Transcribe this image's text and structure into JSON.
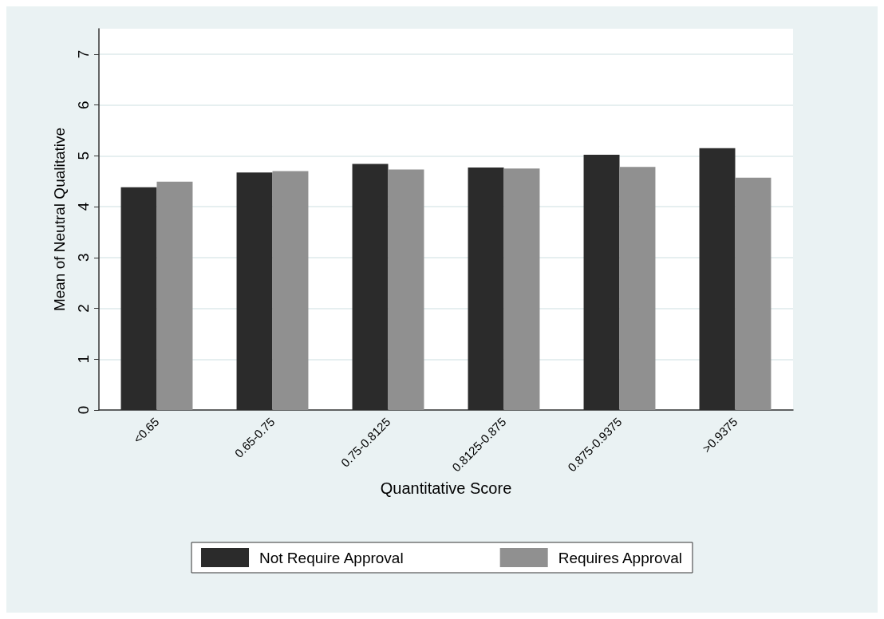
{
  "chart_data": {
    "type": "bar",
    "xlabel": "Quantitative Score",
    "ylabel": "Mean of Neutral Qualitative",
    "categories": [
      "<0.65",
      "0.65-0.75",
      "0.75-0.8125",
      "0.8125-0.875",
      "0.875-0.9375",
      ">0.9375"
    ],
    "series": [
      {
        "name": "Not Require Approval",
        "color": "#2b2b2b",
        "values": [
          4.38,
          4.67,
          4.84,
          4.77,
          5.02,
          5.15
        ]
      },
      {
        "name": "Requires Approval",
        "color": "#909090",
        "values": [
          4.49,
          4.7,
          4.73,
          4.75,
          4.78,
          4.57
        ]
      }
    ],
    "ylim": [
      0,
      7.5
    ],
    "yticks": [
      0,
      1,
      2,
      3,
      4,
      5,
      6,
      7
    ],
    "grid": "y",
    "legend": "bottom"
  }
}
